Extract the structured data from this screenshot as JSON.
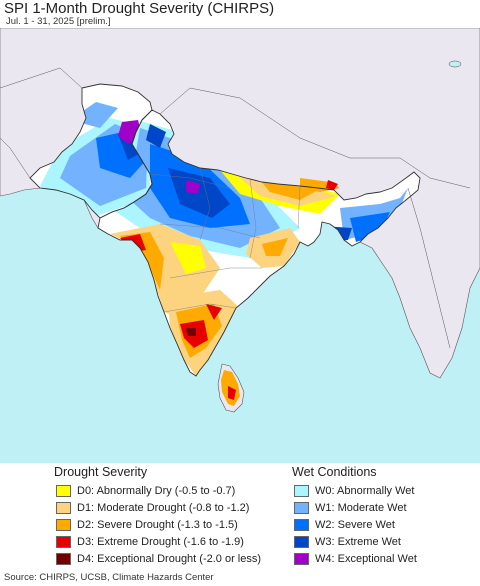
{
  "title": "SPI 1-Month Drought Severity (CHIRPS)",
  "subtitle": "Jul. 1 - 31, 2025 [prelim.]",
  "source": "Source: CHIRPS, UCSB, Climate Hazards Center",
  "colors": {
    "ocean": "#bff0f6",
    "land_neutral": "#ebe7f0",
    "normal": "#ffffff",
    "border": "#333333"
  },
  "legend": {
    "drought_title": "Drought Severity",
    "wet_title": "Wet Conditions",
    "drought": [
      {
        "label": "D0: Abnormally Dry (-0.5 to -0.7)",
        "color": "#ffff00"
      },
      {
        "label": "D1: Moderate Drought (-0.8 to -1.2)",
        "color": "#fcd37f"
      },
      {
        "label": "D2: Severe Drought (-1.3 to -1.5)",
        "color": "#ffaa00"
      },
      {
        "label": "D3: Extreme Drought (-1.6 to -1.9)",
        "color": "#e60000"
      },
      {
        "label": "D4: Exceptional Drought (-2.0 or less)",
        "color": "#730000"
      }
    ],
    "wet": [
      {
        "label": "W0: Abnormally Wet",
        "color": "#aaf5ff"
      },
      {
        "label": "W1: Moderate Wet",
        "color": "#73b2ff"
      },
      {
        "label": "W2: Severe Wet",
        "color": "#0070ff"
      },
      {
        "label": "W3: Extreme Wet",
        "color": "#0046c8"
      },
      {
        "label": "W4: Exceptional Wet",
        "color": "#a000c8"
      }
    ]
  }
}
